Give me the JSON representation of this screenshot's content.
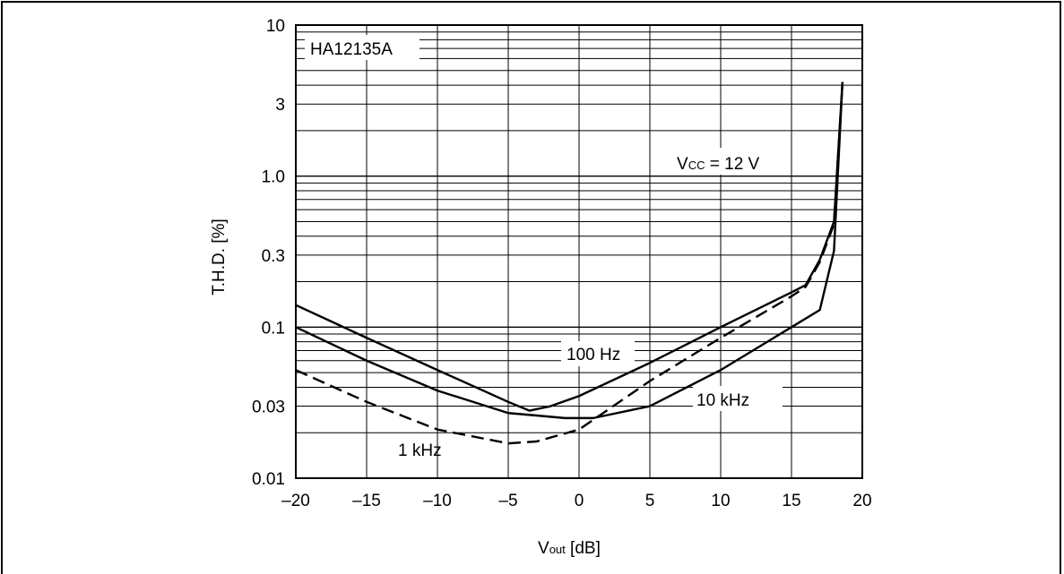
{
  "chart_data": {
    "type": "line",
    "title": "",
    "device_label": "HA12135A",
    "condition": {
      "prefix": "V",
      "sub": "CC",
      "rest": " = 12 V"
    },
    "xlabel": {
      "prefix": "V",
      "sub": "out",
      "rest": "  [dB]"
    },
    "ylabel": "T.H.D. [%]",
    "xscale": "linear",
    "yscale": "log",
    "xlim": [
      -20,
      20
    ],
    "ylim": [
      0.01,
      10
    ],
    "xticks": [
      -20,
      -15,
      -10,
      -5,
      0,
      5,
      10,
      15,
      20
    ],
    "xtick_labels": [
      "–20",
      "–15",
      "–10",
      "–5",
      "0",
      "5",
      "10",
      "15",
      "20"
    ],
    "yticks": [
      0.01,
      0.03,
      0.1,
      0.3,
      1.0,
      3,
      10
    ],
    "ytick_labels": [
      "0.01",
      "0.03",
      "0.1",
      "0.3",
      "1.0",
      "3",
      "10"
    ],
    "grid": true,
    "series": [
      {
        "name": "100 Hz",
        "style": "solid",
        "x": [
          -20,
          -15,
          -10,
          -5,
          -3.5,
          -2,
          0,
          5,
          10,
          15,
          16,
          17,
          18,
          18.6
        ],
        "y": [
          0.14,
          0.085,
          0.052,
          0.032,
          0.028,
          0.03,
          0.035,
          0.058,
          0.1,
          0.17,
          0.19,
          0.28,
          0.5,
          4.2
        ]
      },
      {
        "name": "1 kHz",
        "style": "dashed",
        "x": [
          -20,
          -15,
          -10,
          -5,
          -3,
          0,
          5,
          10,
          15,
          16,
          17,
          18,
          18.6
        ],
        "y": [
          0.052,
          0.032,
          0.021,
          0.017,
          0.0175,
          0.021,
          0.044,
          0.085,
          0.16,
          0.185,
          0.27,
          0.48,
          4.2
        ]
      },
      {
        "name": "10 kHz",
        "style": "solid",
        "x": [
          -20,
          -15,
          -10,
          -5,
          -3,
          -1,
          1,
          5,
          10,
          15,
          17,
          18,
          18.6
        ],
        "y": [
          0.1,
          0.06,
          0.038,
          0.027,
          0.026,
          0.025,
          0.025,
          0.03,
          0.052,
          0.1,
          0.13,
          0.32,
          4.2
        ]
      }
    ],
    "annotations": [
      "100 Hz",
      "1 kHz",
      "10 kHz"
    ]
  }
}
